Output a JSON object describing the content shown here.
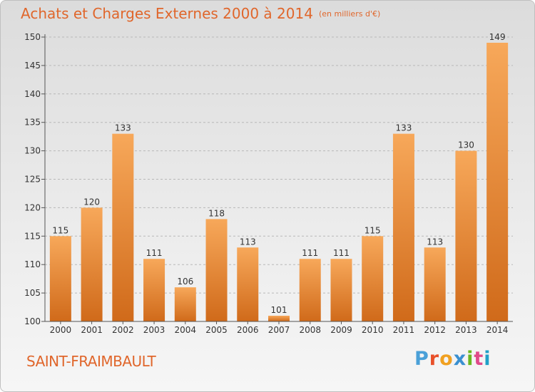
{
  "header": {
    "title": "Achats et Charges Externes 2000 à 2014",
    "subtitle": "(en milliers d'€)"
  },
  "footer": {
    "commune": "SAINT-FRAIMBAULT",
    "logo": "Proxiti"
  },
  "colors": {
    "accent": "#e0662b",
    "bar_top": "#f7a85a",
    "bar_bottom": "#d06a1a",
    "logo_letters": [
      "#4aa0d8",
      "#e8502a",
      "#f0a020",
      "#3a90d0",
      "#6ab820",
      "#e04a8a",
      "#20a0c8"
    ]
  },
  "chart_data": {
    "type": "bar",
    "title": "Achats et Charges Externes 2000 à 2014",
    "subtitle": "(en milliers d'€)",
    "categories": [
      "2000",
      "2001",
      "2002",
      "2003",
      "2004",
      "2005",
      "2006",
      "2007",
      "2008",
      "2009",
      "2010",
      "2011",
      "2012",
      "2013",
      "2014"
    ],
    "values": [
      115,
      120,
      133,
      111,
      106,
      118,
      113,
      101,
      111,
      111,
      115,
      133,
      113,
      130,
      149
    ],
    "ylim": [
      100,
      150
    ],
    "yticks": [
      100,
      105,
      110,
      115,
      120,
      125,
      130,
      135,
      140,
      145,
      150
    ],
    "grid": "horizontal dashed",
    "data_labels": true
  }
}
